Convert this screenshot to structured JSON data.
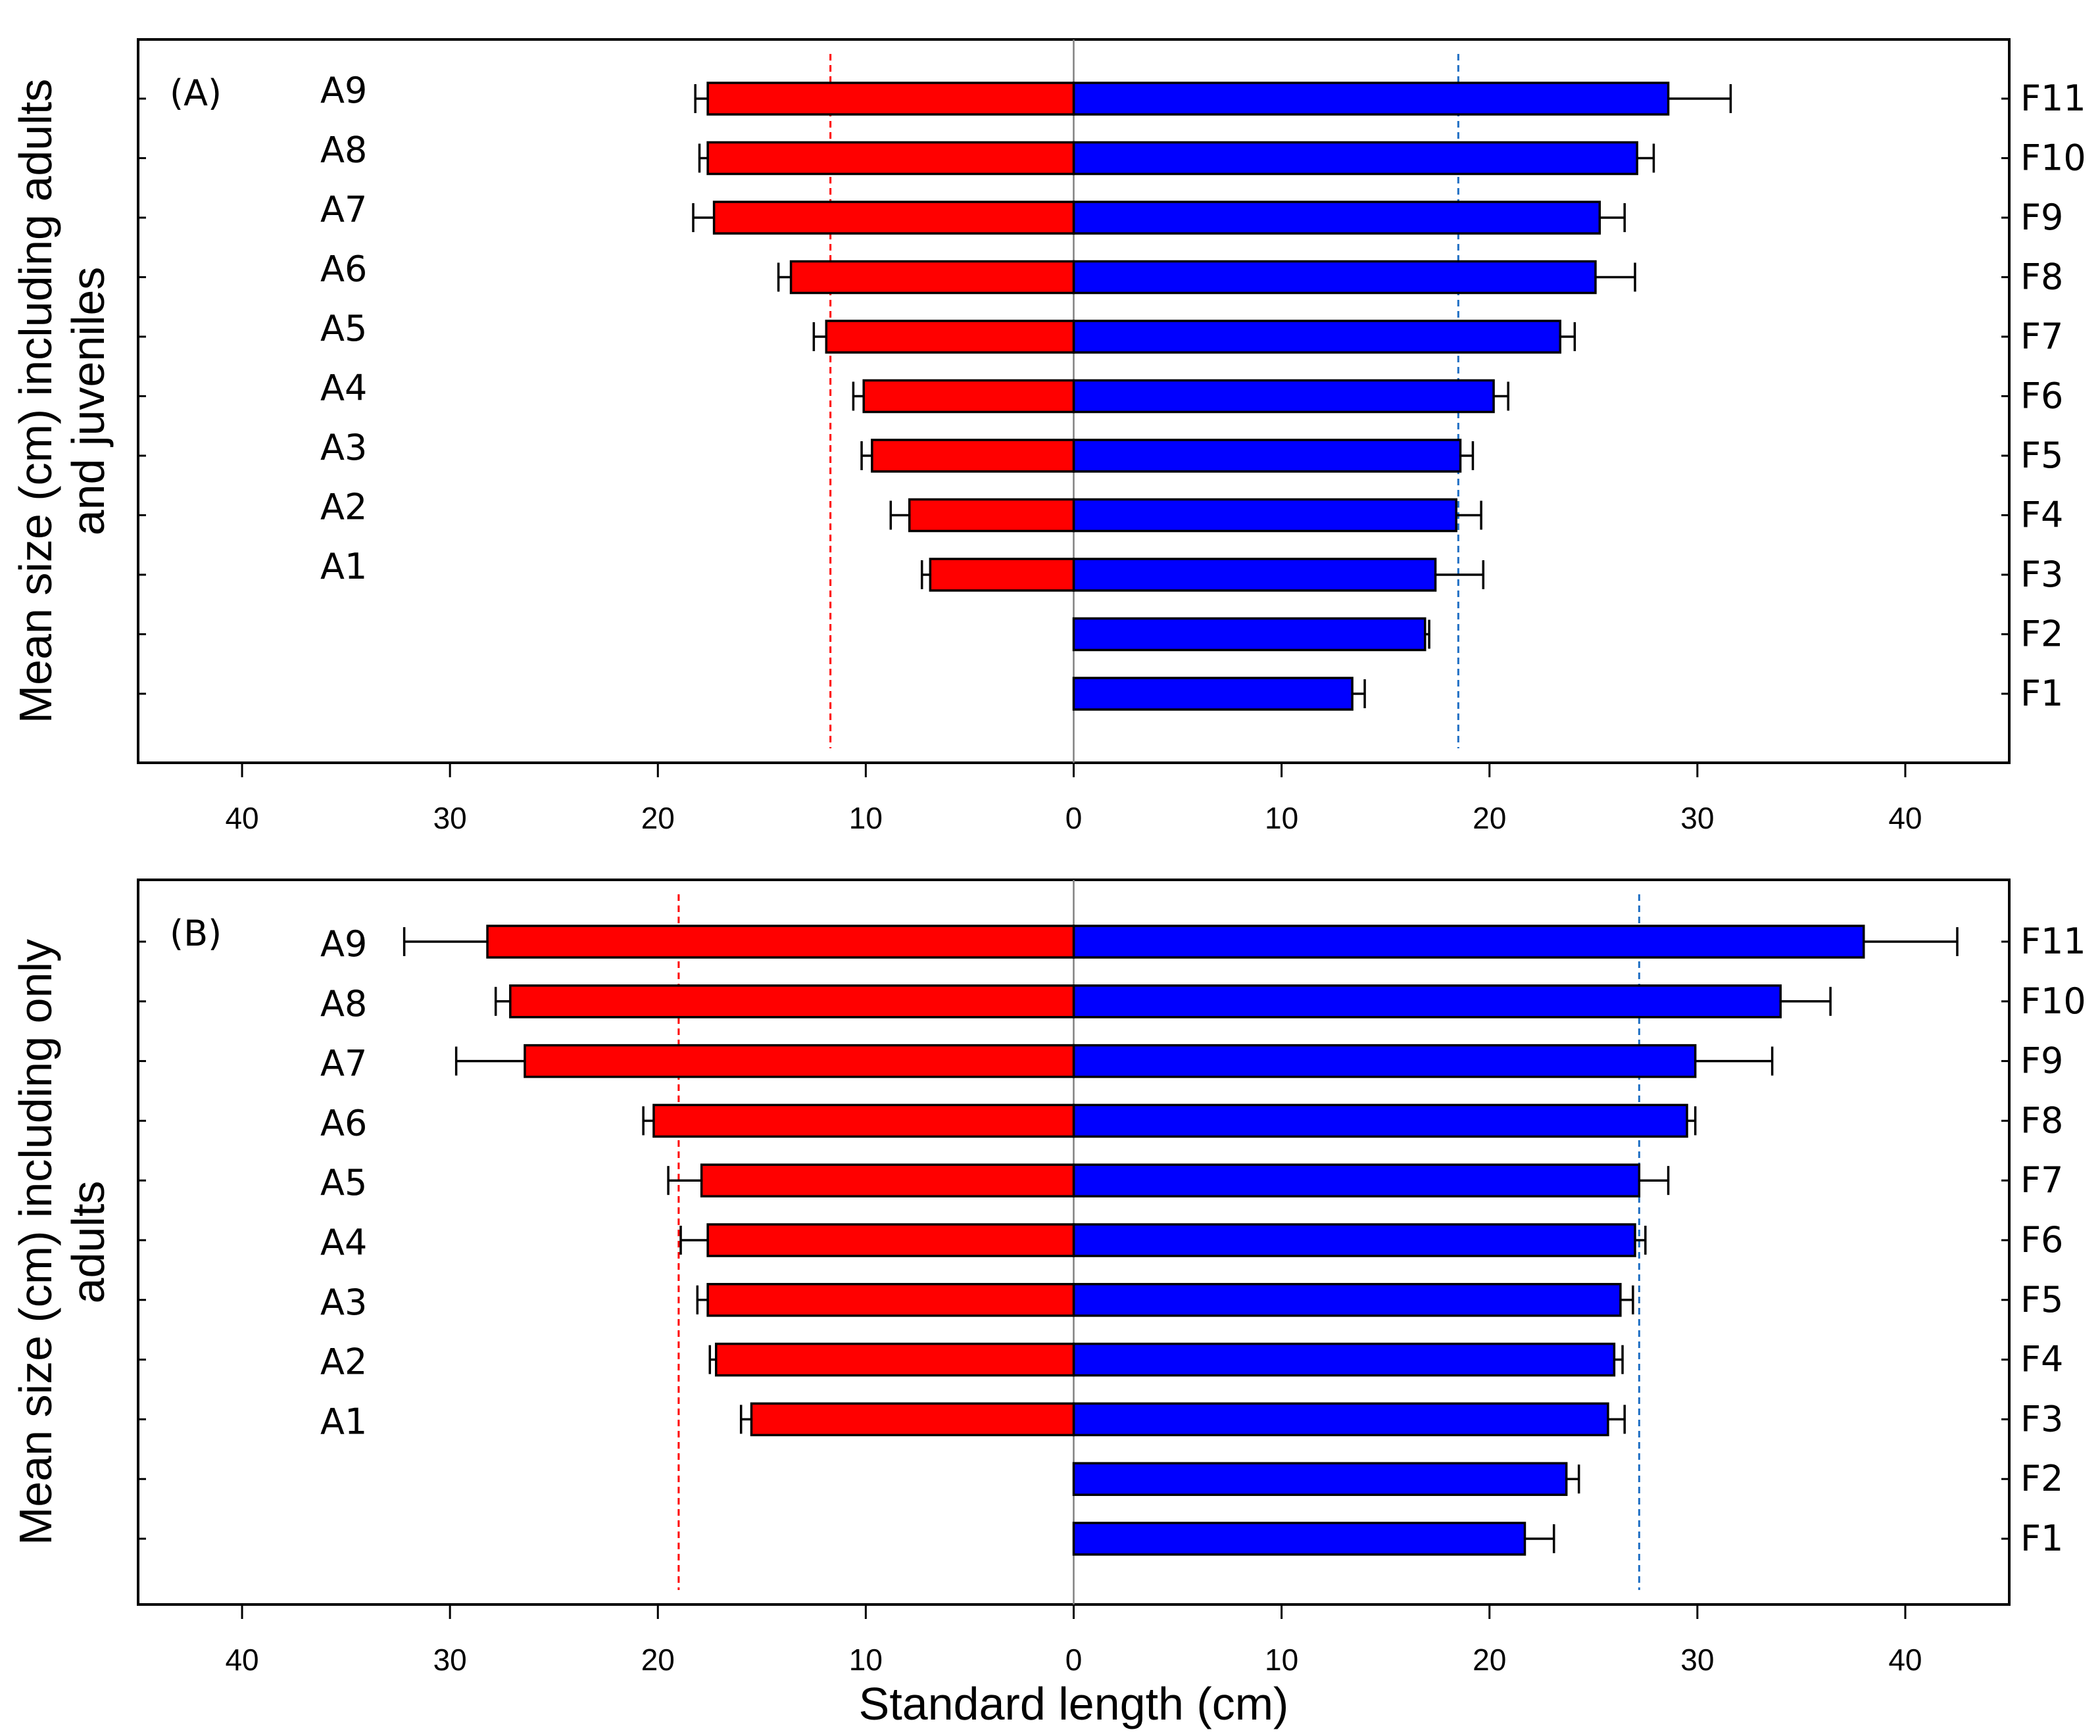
{
  "chart_data": [
    {
      "type": "bar",
      "orientation": "horizontal-back-to-back",
      "panel_label": "(A)",
      "ylabel_lines": [
        "Mean size (cm) including adults",
        "and juveniles"
      ],
      "xlabel": "",
      "xlim": [
        -45,
        45
      ],
      "xticks": [
        -40,
        -30,
        -20,
        -10,
        0,
        10,
        20,
        30,
        40
      ],
      "xtick_labels": [
        "40",
        "30",
        "20",
        "10",
        "0",
        "10",
        "20",
        "30",
        "40"
      ],
      "left_series": {
        "name": "A",
        "color": "#ff0000",
        "reference_line": 11.7,
        "categories": [
          "A9",
          "A8",
          "A7",
          "A6",
          "A5",
          "A4",
          "A3",
          "A2",
          "A1"
        ],
        "values": [
          17.6,
          17.6,
          17.3,
          13.6,
          11.9,
          10.1,
          9.7,
          7.9,
          6.9
        ],
        "errors": [
          0.6,
          0.4,
          1.0,
          0.6,
          0.6,
          0.5,
          0.5,
          0.9,
          0.4
        ]
      },
      "right_series": {
        "name": "F",
        "color": "#0000ff",
        "reference_line": 18.5,
        "categories": [
          "F11",
          "F10",
          "F9",
          "F8",
          "F7",
          "F6",
          "F5",
          "F4",
          "F3",
          "F2",
          "F1"
        ],
        "values": [
          28.6,
          27.1,
          25.3,
          25.1,
          23.4,
          20.2,
          18.6,
          18.4,
          17.4,
          16.9,
          13.4
        ],
        "errors": [
          3.0,
          0.8,
          1.2,
          1.9,
          0.7,
          0.7,
          0.6,
          1.2,
          2.3,
          0.2,
          0.6
        ]
      }
    },
    {
      "type": "bar",
      "orientation": "horizontal-back-to-back",
      "panel_label": "(B)",
      "ylabel_lines": [
        "Mean size (cm) including only",
        "adults"
      ],
      "xlabel": "Standard length (cm)",
      "xlim": [
        -45,
        45
      ],
      "xticks": [
        -40,
        -30,
        -20,
        -10,
        0,
        10,
        20,
        30,
        40
      ],
      "xtick_labels": [
        "40",
        "30",
        "20",
        "10",
        "0",
        "10",
        "20",
        "30",
        "40"
      ],
      "left_series": {
        "name": "A",
        "color": "#ff0000",
        "reference_line": 19.0,
        "categories": [
          "A9",
          "A8",
          "A7",
          "A6",
          "A5",
          "A4",
          "A3",
          "A2",
          "A1"
        ],
        "values": [
          28.2,
          27.1,
          26.4,
          20.2,
          17.9,
          17.6,
          17.6,
          17.2,
          15.5
        ],
        "errors": [
          4.0,
          0.7,
          3.3,
          0.5,
          1.6,
          1.3,
          0.5,
          0.3,
          0.5
        ]
      },
      "right_series": {
        "name": "F",
        "color": "#0000ff",
        "reference_line": 27.2,
        "categories": [
          "F11",
          "F10",
          "F9",
          "F8",
          "F7",
          "F6",
          "F5",
          "F4",
          "F3",
          "F2",
          "F1"
        ],
        "values": [
          38.0,
          34.0,
          29.9,
          29.5,
          27.2,
          27.0,
          26.3,
          26.0,
          25.7,
          23.7,
          21.7
        ],
        "errors": [
          4.5,
          2.4,
          3.7,
          0.4,
          1.4,
          0.5,
          0.6,
          0.4,
          0.8,
          0.6,
          1.4
        ]
      }
    }
  ]
}
